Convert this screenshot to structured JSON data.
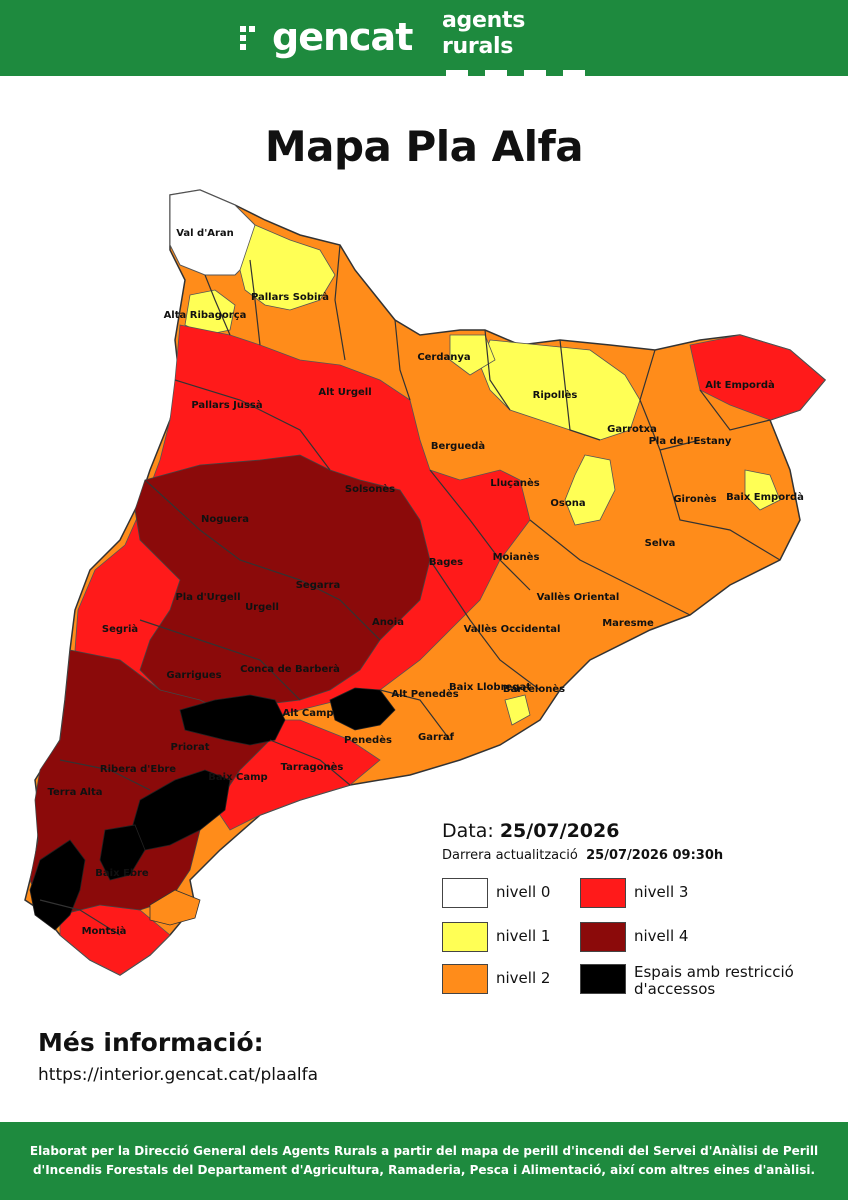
{
  "header": {
    "logo_text": "gencat",
    "department": "agents rurals",
    "bg_color": "#1e8a3e"
  },
  "title": "Mapa Pla Alfa",
  "date": {
    "label": "Data:",
    "value": "25/07/2026"
  },
  "update": {
    "label": "Darrera actualització",
    "value": "25/07/2026 09:30h"
  },
  "legend": [
    {
      "label": "nivell 0",
      "color": "#ffffff"
    },
    {
      "label": "nivell 1",
      "color": "#ffff55"
    },
    {
      "label": "nivell 2",
      "color": "#ff8c1a"
    },
    {
      "label": "nivell 3",
      "color": "#ff1a1a"
    },
    {
      "label": "nivell 4",
      "color": "#8b0a0a"
    },
    {
      "label": "Espais amb restricció d'accessos",
      "color": "#000000"
    }
  ],
  "map_labels": {
    "val_daran": "Val d'Aran",
    "alta_ribagorca": "Alta Ribagorça",
    "pallars_sobira": "Pallars Sobirà",
    "pallars_jussa": "Pallars Jussà",
    "alt_urgell": "Alt Urgell",
    "cerdanya": "Cerdanya",
    "ripolles": "Ripollès",
    "alt_emporda": "Alt Empordà",
    "garrotxa": "Garrotxa",
    "pla_estany": "Pla de l'Estany",
    "bergueda": "Berguedà",
    "llucanes": "Lluçanès",
    "solsones": "Solsonès",
    "osona": "Osona",
    "girones": "Gironès",
    "baix_emporda": "Baix Empordà",
    "noguera": "Noguera",
    "selva": "Selva",
    "moianes": "Moianès",
    "bages": "Bages",
    "segarra": "Segarra",
    "pla_urgell": "Pla d'Urgell",
    "urgell": "Urgell",
    "valles_oriental": "Vallès Oriental",
    "maresme": "Maresme",
    "segria": "Segrià",
    "anoia": "Anoia",
    "valles_occidental": "Vallès Occidental",
    "garrigues": "Garrigues",
    "conca_barbera": "Conca de Barberà",
    "barcelones": "Barcelonès",
    "alt_penedes": "Alt Penedès",
    "baix_llobregat": "Baix Llobregat",
    "alt_camp": "Alt Camp",
    "baix_penedes": "Penedès",
    "garraf": "Garraf",
    "priorat": "Priorat",
    "ribera_ebre": "Ribera d'Ebre",
    "baix_camp": "Baix Camp",
    "tarragones": "Tarragonès",
    "terra_alta": "Terra Alta",
    "baix_ebre": "Baix Ebre",
    "montsia": "Montsià"
  },
  "more_info": {
    "title": "Més informació:",
    "url": "https://interior.gencat.cat/plaalfa"
  },
  "footer": "Elaborat per la Direcció General dels Agents Rurals a partir del mapa de perill d'incendi del Servei d'Anàlisi de Perill d'Incendis Forestals del Departament d'Agricultura, Ramaderia, Pesca i Alimentació, així com altres eines d'anàlisi."
}
